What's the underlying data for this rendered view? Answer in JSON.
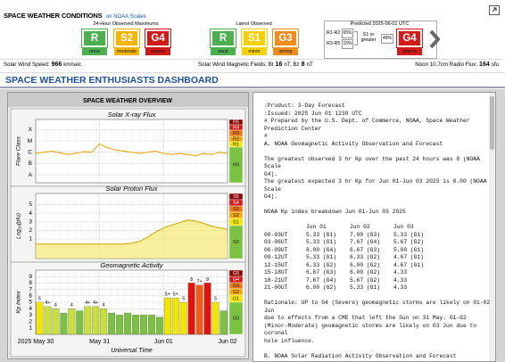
{
  "header": {
    "title": "SPACE WEATHER CONDITIONS",
    "link": "on NOAA Scales"
  },
  "scales": {
    "observed_max": {
      "title": "24-Hour Observed Maximums",
      "items": [
        {
          "code": "R",
          "label": "none",
          "color": "#4caf50"
        },
        {
          "code": "S2",
          "label": "moderate",
          "color": "#f5b400"
        },
        {
          "code": "G4",
          "label": "severe",
          "color": "#d11a1a"
        }
      ]
    },
    "latest": {
      "title": "Latest Observed",
      "items": [
        {
          "code": "R",
          "label": "none",
          "color": "#4caf50"
        },
        {
          "code": "S1",
          "label": "minor",
          "color": "#f7d000"
        },
        {
          "code": "G3",
          "label": "strong",
          "color": "#f08c1c"
        }
      ]
    },
    "predicted": {
      "title": "Predicted 2025-06-01 UTC",
      "r_probs": [
        {
          "label": "R1-R2",
          "value": "65%"
        },
        {
          "label": "R3-R5",
          "value": "15%"
        }
      ],
      "s_prob": {
        "label": "S1 or greater",
        "value": "49%"
      },
      "g": {
        "code": "G4",
        "label": "severe",
        "color": "#d11a1a"
      }
    }
  },
  "status": [
    [
      "Solar Wind Speed:",
      "966",
      "km/sec"
    ],
    [
      "Solar Wind Magnetic Fields: Bt",
      "16",
      "nT, Bz",
      "8",
      "nT"
    ],
    [
      "Noon 10.7cm Radio Flux:",
      "164",
      "sfu"
    ]
  ],
  "banner": "SPACE WEATHER ENTHUSIASTS DASHBOARD",
  "overview": {
    "title": "SPACE WEATHER OVERVIEW",
    "time": {
      "xlim": [
        0,
        72
      ],
      "xticks": [
        {
          "value": 0,
          "label": "2025 May 30"
        },
        {
          "value": 24,
          "label": "May 31"
        },
        {
          "value": 48,
          "label": "Jun 01"
        },
        {
          "value": 72,
          "label": "Jun 02"
        }
      ],
      "label": "Universal Time"
    },
    "xray": {
      "title": "Solar X-ray Flux",
      "ylabel": "Flare Class",
      "ylim": [
        -8.7,
        -3.1
      ],
      "yticks": [
        {
          "value": -8,
          "label": "A"
        },
        {
          "value": -7,
          "label": "B"
        },
        {
          "value": -6,
          "label": "C"
        },
        {
          "value": -5,
          "label": "M"
        },
        {
          "value": -4,
          "label": "X"
        }
      ],
      "x": [
        0,
        3,
        6,
        9,
        12,
        15,
        18,
        21,
        24,
        27,
        30,
        33,
        36,
        39,
        42,
        45,
        48,
        51,
        54,
        57,
        60,
        63,
        66,
        69,
        72
      ],
      "values": [
        -6.1,
        -6.0,
        -5.9,
        -6.05,
        -6.2,
        -6.1,
        -5.95,
        -6.0,
        -5.25,
        -5.6,
        -5.8,
        -5.9,
        -6.0,
        -6.1,
        -6.0,
        -5.9,
        -6.1,
        -6.2,
        -6.1,
        -6.2,
        -6.3,
        -6.1,
        -6.2,
        -6.0,
        -6.1
      ],
      "color": "#e8a000",
      "scale": [
        "R5",
        "R4",
        "R3",
        "R2",
        "R1",
        "R0"
      ]
    },
    "proton": {
      "title": "Solar Proton Flux",
      "ylabel": "Log₁₀(pfu)",
      "ylim": [
        -1.3,
        6.3
      ],
      "yticks": [
        1,
        2,
        3,
        4,
        5
      ],
      "x": [
        0,
        3,
        6,
        9,
        12,
        15,
        18,
        21,
        24,
        27,
        30,
        33,
        36,
        39,
        42,
        45,
        48,
        51,
        54,
        57,
        60,
        63,
        66,
        69,
        72
      ],
      "values": [
        0.4,
        0.4,
        0.4,
        0.4,
        0.4,
        0.4,
        0.4,
        0.4,
        0.4,
        0.4,
        0.4,
        0.4,
        0.5,
        0.7,
        1.2,
        1.8,
        2.3,
        2.6,
        2.9,
        3.2,
        3.1,
        2.8,
        2.5,
        2.3,
        2.1
      ],
      "color": "#c8a800",
      "scale": [
        "S5",
        "S4",
        "S3",
        "S2",
        "S1",
        "S0"
      ]
    },
    "kp": {
      "title": "Geomagnetic Activity",
      "ylabel": "Kp index",
      "ylim": [
        0,
        10
      ],
      "yticks": [
        1,
        2,
        3,
        4,
        5,
        6,
        7,
        8,
        9
      ],
      "x": [
        0,
        3,
        6,
        9,
        12,
        15,
        18,
        21,
        24,
        27,
        30,
        33,
        36,
        39,
        42,
        45,
        48,
        51,
        54,
        57,
        60,
        63,
        66,
        69
      ],
      "values": [
        5,
        4.33,
        4,
        3.33,
        4,
        3.67,
        4.33,
        4.33,
        4,
        3.33,
        3,
        3.33,
        3,
        3,
        3,
        2.67,
        5.67,
        5.67,
        5,
        8,
        7.67,
        8,
        5,
        3.67
      ],
      "value_labels": [
        "5",
        "4+",
        "4",
        null,
        "4",
        null,
        "4+",
        "4+",
        "4",
        null,
        null,
        null,
        null,
        null,
        null,
        null,
        "5+",
        "5+",
        "5",
        "8",
        "7+",
        "8",
        "5",
        null
      ],
      "colors": [
        "#f2e600",
        "#c9e03c",
        "#c9e03c",
        "#7cc242",
        "#c9e03c",
        "#7cc242",
        "#c9e03c",
        "#c9e03c",
        "#c9e03c",
        "#7cc242",
        "#7cc242",
        "#7cc242",
        "#7cc242",
        "#7cc242",
        "#7cc242",
        "#7cc242",
        "#f2e600",
        "#f2e600",
        "#f2e600",
        "#e3120b",
        "#f05a14",
        "#e3120b",
        "#f2e600",
        "#7cc242"
      ],
      "scale": [
        "G5",
        "G4",
        "G3",
        "G2",
        "G1",
        "G0"
      ]
    }
  },
  "forecast": {
    "blocks": [
      {
        "lines": [
          ":Product: 3-Day Forecast",
          ":Issued: 2025 Jun 01 1230 UTC",
          "# Prepared by the U.S. Dept. of Commerce, NOAA, Space Weather",
          "Prediction Center",
          "#",
          "A. NOAA Geomagnetic Activity Observation and Forecast"
        ]
      },
      {
        "lines": [
          "The greatest observed 3 hr Kp over the past 24 hours was 8 (NOAA",
          "Scale",
          "G4).",
          "The greatest expected 3 hr Kp for Jun 01-Jun 03 2025 is 8.00 (NOAA",
          "Scale",
          "G4)."
        ]
      },
      {
        "lines": [
          "NOAA Kp index breakdown Jun 01-Jun 03 2025"
        ]
      },
      {
        "header": [
          "Jun 01",
          "Jun 02",
          "Jun 03"
        ],
        "rows": [
          [
            "00-03UT",
            "5.33 (G1)",
            "7.00 (G3)",
            "5.33 (G1)"
          ],
          [
            "03-06UT",
            "5.33 (G1)",
            "7.67 (G4)",
            "5.67 (G2)"
          ],
          [
            "06-09UT",
            "8.00 (G4)",
            "6.67 (G3)",
            "5.00 (G1)"
          ],
          [
            "09-12UT",
            "5.33 (G1)",
            "6.33 (G2)",
            "4.67 (G1)"
          ],
          [
            "12-15UT",
            "6.33 (G2)",
            "6.00 (G2)",
            "4.67 (G1)"
          ],
          [
            "15-18UT",
            "6.67 (G3)",
            "6.00 (G2)",
            "4.33"
          ],
          [
            "18-21UT",
            "7.67 (G4)",
            "5.67 (G2)",
            "4.33"
          ],
          [
            "21-00UT",
            "6.00 (G2)",
            "5.33 (G1)",
            "4.33"
          ]
        ]
      },
      {
        "lines": [
          "Rationale: UP to G4 (Severe) geomagnetic storms are likely on 01-02",
          "Jun",
          "due to effects from a CME that left the Sun on 31 May. G1-G2",
          "(Minor-Moderate) geomagnetic storms are likely on 03 Jun due to",
          "coronal",
          "hole influence."
        ]
      },
      {
        "lines": [
          "B. NOAA Solar Radiation Activity Observation and Forecast"
        ]
      }
    ]
  }
}
